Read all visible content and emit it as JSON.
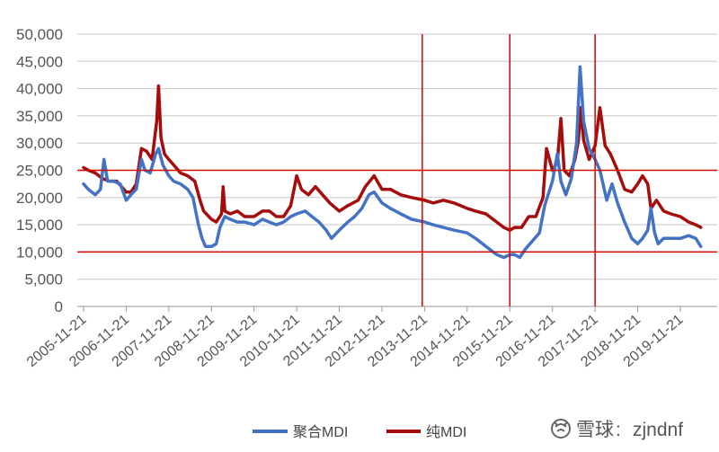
{
  "chart_data": {
    "type": "line",
    "title": "",
    "xlabel": "",
    "ylabel": "",
    "ylim": [
      0,
      50000
    ],
    "yticks": [
      0,
      5000,
      10000,
      15000,
      20000,
      25000,
      30000,
      35000,
      40000,
      45000,
      50000
    ],
    "ytick_labels": [
      "0",
      "5,000",
      "10,000",
      "15,000",
      "20,000",
      "25,000",
      "30,000",
      "35,000",
      "40,000",
      "45,000",
      "50,000"
    ],
    "x_tick_labels": [
      "2005-11-21",
      "2006-11-21",
      "2007-11-21",
      "2008-11-21",
      "2009-11-21",
      "2010-11-21",
      "2011-11-21",
      "2012-11-21",
      "2013-11-21",
      "2014-11-21",
      "2015-11-21",
      "2016-11-21",
      "2017-11-21",
      "2018-11-21",
      "2019-11-21"
    ],
    "xlim": [
      "2005-11-21",
      "2020-06-01"
    ],
    "grid": true,
    "legend_position": "bottom",
    "reference_lines": {
      "horizontal": [
        25000,
        10000
      ],
      "vertical": [
        "2013-11-01",
        "2015-11-21",
        "2017-11-21"
      ],
      "color": "#d40000"
    },
    "series": [
      {
        "name": "聚合MDI",
        "color": "#4472c4",
        "points": [
          [
            "2005-11-21",
            22500
          ],
          [
            "2006-01-01",
            21500
          ],
          [
            "2006-03-01",
            20500
          ],
          [
            "2006-04-15",
            21500
          ],
          [
            "2006-05-15",
            27000
          ],
          [
            "2006-06-15",
            23000
          ],
          [
            "2006-08-01",
            23000
          ],
          [
            "2006-10-01",
            22500
          ],
          [
            "2006-11-21",
            19500
          ],
          [
            "2007-01-01",
            20500
          ],
          [
            "2007-02-15",
            21500
          ],
          [
            "2007-04-01",
            27000
          ],
          [
            "2007-05-01",
            25000
          ],
          [
            "2007-06-15",
            24500
          ],
          [
            "2007-08-01",
            28000
          ],
          [
            "2007-08-25",
            29000
          ],
          [
            "2007-10-01",
            26000
          ],
          [
            "2007-11-21",
            24000
          ],
          [
            "2008-01-01",
            23000
          ],
          [
            "2008-03-01",
            22500
          ],
          [
            "2008-05-01",
            21500
          ],
          [
            "2008-06-15",
            20000
          ],
          [
            "2008-08-01",
            15000
          ],
          [
            "2008-09-01",
            12500
          ],
          [
            "2008-10-01",
            11000
          ],
          [
            "2008-11-21",
            11000
          ],
          [
            "2009-01-01",
            11500
          ],
          [
            "2009-02-01",
            14500
          ],
          [
            "2009-03-15",
            16500
          ],
          [
            "2009-05-01",
            16000
          ],
          [
            "2009-07-01",
            15500
          ],
          [
            "2009-09-01",
            15500
          ],
          [
            "2009-11-21",
            15000
          ],
          [
            "2010-02-01",
            16000
          ],
          [
            "2010-04-01",
            15500
          ],
          [
            "2010-06-01",
            15000
          ],
          [
            "2010-08-01",
            15500
          ],
          [
            "2010-10-01",
            16500
          ],
          [
            "2010-11-21",
            17000
          ],
          [
            "2011-02-01",
            17500
          ],
          [
            "2011-04-01",
            16500
          ],
          [
            "2011-06-01",
            15500
          ],
          [
            "2011-08-01",
            14000
          ],
          [
            "2011-09-15",
            12500
          ],
          [
            "2011-11-21",
            14000
          ],
          [
            "2012-02-01",
            15500
          ],
          [
            "2012-04-01",
            16500
          ],
          [
            "2012-06-01",
            18000
          ],
          [
            "2012-08-01",
            20500
          ],
          [
            "2012-09-15",
            21000
          ],
          [
            "2012-11-21",
            19000
          ],
          [
            "2013-02-01",
            18000
          ],
          [
            "2013-05-01",
            17000
          ],
          [
            "2013-08-01",
            16000
          ],
          [
            "2013-11-21",
            15500
          ],
          [
            "2014-02-01",
            15000
          ],
          [
            "2014-05-01",
            14500
          ],
          [
            "2014-08-01",
            14000
          ],
          [
            "2014-11-21",
            13500
          ],
          [
            "2015-02-01",
            12500
          ],
          [
            "2015-05-01",
            11000
          ],
          [
            "2015-08-01",
            9500
          ],
          [
            "2015-10-01",
            9000
          ],
          [
            "2015-11-21",
            9500
          ],
          [
            "2016-01-01",
            9500
          ],
          [
            "2016-02-15",
            9000
          ],
          [
            "2016-04-01",
            10500
          ],
          [
            "2016-06-01",
            12000
          ],
          [
            "2016-08-01",
            13500
          ],
          [
            "2016-09-15",
            18500
          ],
          [
            "2016-11-21",
            23000
          ],
          [
            "2017-01-01",
            28000
          ],
          [
            "2017-02-01",
            23000
          ],
          [
            "2017-03-15",
            20500
          ],
          [
            "2017-05-01",
            23500
          ],
          [
            "2017-06-15",
            30000
          ],
          [
            "2017-07-15",
            44000
          ],
          [
            "2017-08-15",
            34000
          ],
          [
            "2017-10-01",
            29000
          ],
          [
            "2017-11-21",
            27000
          ],
          [
            "2018-01-01",
            25000
          ],
          [
            "2018-03-01",
            19500
          ],
          [
            "2018-04-15",
            22500
          ],
          [
            "2018-06-01",
            19000
          ],
          [
            "2018-08-01",
            15500
          ],
          [
            "2018-10-01",
            12500
          ],
          [
            "2018-11-21",
            11500
          ],
          [
            "2019-01-01",
            12500
          ],
          [
            "2019-02-15",
            14000
          ],
          [
            "2019-03-15",
            18000
          ],
          [
            "2019-04-15",
            13500
          ],
          [
            "2019-05-15",
            11500
          ],
          [
            "2019-07-01",
            12500
          ],
          [
            "2019-09-01",
            12500
          ],
          [
            "2019-11-21",
            12500
          ],
          [
            "2020-02-01",
            13000
          ],
          [
            "2020-04-01",
            12500
          ],
          [
            "2020-05-15",
            11000
          ]
        ]
      },
      {
        "name": "纯MDI",
        "color": "#a50c0c",
        "points": [
          [
            "2005-11-21",
            25500
          ],
          [
            "2006-01-01",
            25000
          ],
          [
            "2006-03-01",
            24500
          ],
          [
            "2006-05-01",
            23500
          ],
          [
            "2006-07-01",
            23000
          ],
          [
            "2006-09-01",
            23000
          ],
          [
            "2006-11-21",
            21000
          ],
          [
            "2007-01-01",
            21000
          ],
          [
            "2007-02-15",
            22500
          ],
          [
            "2007-04-01",
            29000
          ],
          [
            "2007-05-15",
            28500
          ],
          [
            "2007-07-01",
            27000
          ],
          [
            "2007-08-10",
            34000
          ],
          [
            "2007-08-25",
            40500
          ],
          [
            "2007-09-15",
            31000
          ],
          [
            "2007-10-15",
            28000
          ],
          [
            "2007-11-21",
            27000
          ],
          [
            "2008-01-01",
            26000
          ],
          [
            "2008-03-01",
            24500
          ],
          [
            "2008-05-01",
            24000
          ],
          [
            "2008-07-01",
            23000
          ],
          [
            "2008-08-15",
            19500
          ],
          [
            "2008-09-15",
            17500
          ],
          [
            "2008-11-21",
            16000
          ],
          [
            "2009-01-01",
            15500
          ],
          [
            "2009-02-15",
            17000
          ],
          [
            "2009-03-01",
            22000
          ],
          [
            "2009-03-15",
            17500
          ],
          [
            "2009-05-01",
            17000
          ],
          [
            "2009-07-01",
            17500
          ],
          [
            "2009-09-01",
            16500
          ],
          [
            "2009-11-21",
            16500
          ],
          [
            "2010-02-01",
            17500
          ],
          [
            "2010-04-01",
            17500
          ],
          [
            "2010-06-01",
            16500
          ],
          [
            "2010-08-01",
            16500
          ],
          [
            "2010-10-01",
            18500
          ],
          [
            "2010-11-21",
            24000
          ],
          [
            "2011-01-01",
            21500
          ],
          [
            "2011-03-01",
            20500
          ],
          [
            "2011-05-01",
            22000
          ],
          [
            "2011-07-01",
            20500
          ],
          [
            "2011-09-01",
            19000
          ],
          [
            "2011-11-21",
            17500
          ],
          [
            "2012-02-01",
            18500
          ],
          [
            "2012-05-01",
            19500
          ],
          [
            "2012-07-01",
            22000
          ],
          [
            "2012-09-15",
            24000
          ],
          [
            "2012-11-21",
            21500
          ],
          [
            "2013-02-01",
            21500
          ],
          [
            "2013-05-01",
            20500
          ],
          [
            "2013-08-01",
            20000
          ],
          [
            "2013-11-21",
            19500
          ],
          [
            "2014-02-01",
            19000
          ],
          [
            "2014-05-01",
            19500
          ],
          [
            "2014-08-01",
            19000
          ],
          [
            "2014-11-21",
            18000
          ],
          [
            "2015-02-01",
            17500
          ],
          [
            "2015-05-01",
            17000
          ],
          [
            "2015-08-01",
            15500
          ],
          [
            "2015-10-01",
            14500
          ],
          [
            "2015-11-21",
            14000
          ],
          [
            "2016-01-01",
            14500
          ],
          [
            "2016-03-01",
            14500
          ],
          [
            "2016-05-01",
            16500
          ],
          [
            "2016-07-01",
            16500
          ],
          [
            "2016-09-01",
            20000
          ],
          [
            "2016-10-01",
            29000
          ],
          [
            "2016-11-21",
            25000
          ],
          [
            "2017-01-01",
            26500
          ],
          [
            "2017-02-01",
            34500
          ],
          [
            "2017-03-01",
            25000
          ],
          [
            "2017-04-15",
            24000
          ],
          [
            "2017-06-01",
            27000
          ],
          [
            "2017-07-01",
            30500
          ],
          [
            "2017-07-20",
            36500
          ],
          [
            "2017-08-15",
            30500
          ],
          [
            "2017-10-01",
            27000
          ],
          [
            "2017-11-21",
            29500
          ],
          [
            "2018-01-01",
            36500
          ],
          [
            "2018-02-15",
            29500
          ],
          [
            "2018-04-01",
            28000
          ],
          [
            "2018-06-01",
            25000
          ],
          [
            "2018-08-01",
            21500
          ],
          [
            "2018-10-01",
            21000
          ],
          [
            "2018-11-21",
            22500
          ],
          [
            "2019-01-01",
            24000
          ],
          [
            "2019-02-15",
            22500
          ],
          [
            "2019-03-15",
            18000
          ],
          [
            "2019-05-01",
            19500
          ],
          [
            "2019-07-01",
            17500
          ],
          [
            "2019-09-01",
            17000
          ],
          [
            "2019-11-21",
            16500
          ],
          [
            "2020-02-01",
            15500
          ],
          [
            "2020-04-01",
            15000
          ],
          [
            "2020-05-15",
            14500
          ]
        ]
      }
    ]
  },
  "watermark": {
    "site": "雪球",
    "separator": ":",
    "handle": "zjndnf"
  }
}
